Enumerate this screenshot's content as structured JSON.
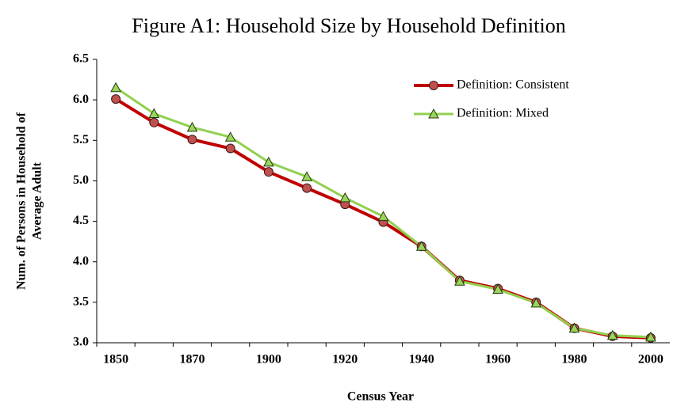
{
  "chart_data": {
    "type": "line",
    "title": "Figure A1: Household Size by Household Definition",
    "xlabel": "Census Year",
    "ylabel": [
      "Num. of Persons in Household of",
      "Average Adult"
    ],
    "categories": [
      "1850",
      null,
      "1870",
      null,
      "1900",
      null,
      "1920",
      null,
      "1940",
      null,
      "1960",
      null,
      "1980",
      null,
      "2000"
    ],
    "series": [
      {
        "name": "Definition: Consistent",
        "color": "#c00000",
        "marker": "circle",
        "marker_color": "#c0504d",
        "values": [
          6.01,
          5.72,
          5.51,
          5.4,
          5.11,
          4.91,
          4.71,
          4.49,
          4.19,
          3.77,
          3.67,
          3.5,
          3.18,
          3.08,
          3.06
        ]
      },
      {
        "name": "Definition: Mixed",
        "color": "#92d050",
        "marker": "triangle",
        "marker_color": "#9bd45a",
        "values": [
          6.15,
          5.83,
          5.66,
          5.54,
          5.23,
          5.05,
          4.79,
          4.56,
          4.19,
          3.76,
          3.66,
          3.49,
          3.18,
          3.09,
          3.07
        ]
      }
    ],
    "ylim": [
      3,
      6.5
    ],
    "yticks": [
      {
        "value": 3,
        "label": "3.0"
      },
      3.5,
      {
        "value": 4,
        "label": "4.0"
      },
      4.5,
      {
        "value": 5,
        "label": "5.0"
      },
      5.5,
      {
        "value": 6,
        "label": "6.0"
      },
      6.5
    ],
    "grid": false,
    "legend": "upper right"
  }
}
